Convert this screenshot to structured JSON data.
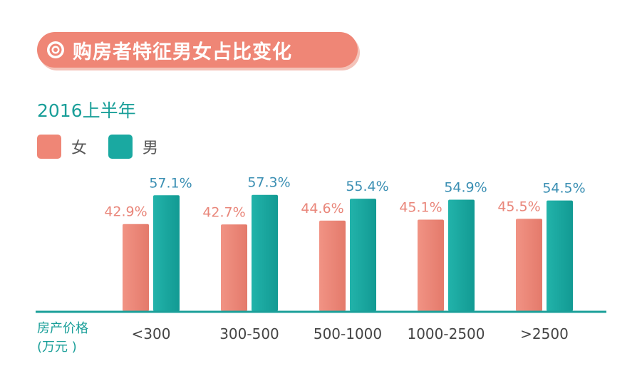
{
  "header": {
    "title": "购房者特征男女占比变化",
    "title_color": "#ef8676",
    "icon": "target-icon"
  },
  "colors": {
    "female": "#ef8676",
    "male": "#1aa9a1",
    "axis": "#1a9f99",
    "female_label": "#e9867a",
    "male_label": "#3b8fb3"
  },
  "chart_data": {
    "type": "bar",
    "title": "购房者特征男女占比变化",
    "subtitle": "2016上半年",
    "xlabel_lines": [
      "房产价格",
      "(万元 )"
    ],
    "ylabel": "",
    "categories": [
      "<300",
      "300-500",
      "500-1000",
      "1000-2500",
      ">2500"
    ],
    "series": [
      {
        "name": "女",
        "values": [
          42.9,
          42.7,
          44.6,
          45.1,
          45.5
        ],
        "labels": [
          "42.9%",
          "42.7%",
          "44.6%",
          "45.1%",
          "45.5%"
        ]
      },
      {
        "name": "男",
        "values": [
          57.1,
          57.3,
          55.4,
          54.9,
          54.5
        ],
        "labels": [
          "57.1%",
          "57.3%",
          "55.4%",
          "54.9%",
          "54.5%"
        ]
      }
    ],
    "ylim": [
      0,
      100
    ],
    "grid": false,
    "legend": "top-left"
  }
}
